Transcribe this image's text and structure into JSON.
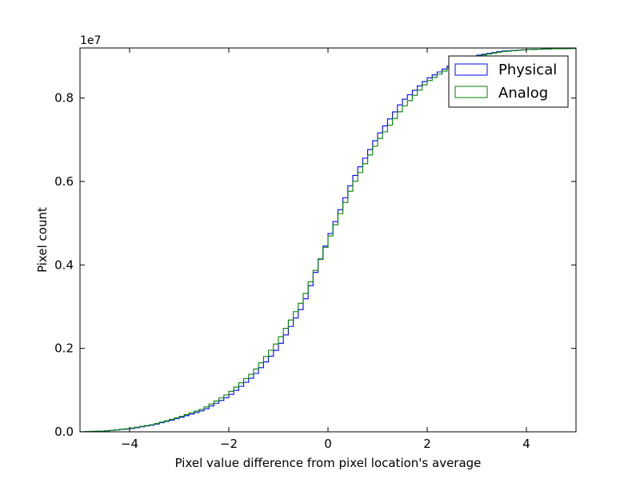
{
  "chart_data": {
    "type": "step",
    "title": "",
    "xlabel": "Pixel value difference from pixel location's average",
    "ylabel": "Pixel count",
    "offset_text": "1e7",
    "xlim": [
      -5,
      5
    ],
    "ylim": [
      0,
      9200000
    ],
    "x_ticks": [
      -4,
      -2,
      0,
      2,
      4
    ],
    "x_tick_labels": [
      "−4",
      "−2",
      "0",
      "2",
      "4"
    ],
    "y_ticks": [
      0,
      2000000,
      4000000,
      6000000,
      8000000
    ],
    "y_tick_labels": [
      "0.0",
      "0.2",
      "0.4",
      "0.6",
      "0.8"
    ],
    "grid": false,
    "legend_position": "upper-right",
    "bins": {
      "start": -5,
      "end": 5,
      "count": 100
    },
    "series": [
      {
        "name": "Physical",
        "color": "#0000ff",
        "x": [
          -5,
          -4.5,
          -4,
          -3.5,
          -3,
          -2.5,
          -2,
          -1.5,
          -1,
          -0.5,
          0,
          0.5,
          1,
          1.5,
          2,
          2.5,
          3,
          3.5,
          4,
          4.5,
          5
        ],
        "values": [
          0,
          20000,
          70000,
          170000,
          330000,
          520000,
          850000,
          1330000,
          2020000,
          3030000,
          4610000,
          6040000,
          7080000,
          7920000,
          8450000,
          8800000,
          9020000,
          9120000,
          9160000,
          9180000,
          9190000
        ]
      },
      {
        "name": "Analog",
        "color": "#008000",
        "x": [
          -5,
          -4.5,
          -4,
          -3.5,
          -3,
          -2.5,
          -2,
          -1.5,
          -1,
          -0.5,
          0,
          0.5,
          1,
          1.5,
          2,
          2.5,
          3,
          3.5,
          4,
          4.5,
          5
        ],
        "values": [
          0,
          20000,
          80000,
          180000,
          350000,
          560000,
          920000,
          1430000,
          2180000,
          3180000,
          4560000,
          5900000,
          6950000,
          7750000,
          8380000,
          8760000,
          9000000,
          9110000,
          9160000,
          9180000,
          9190000
        ]
      }
    ]
  }
}
